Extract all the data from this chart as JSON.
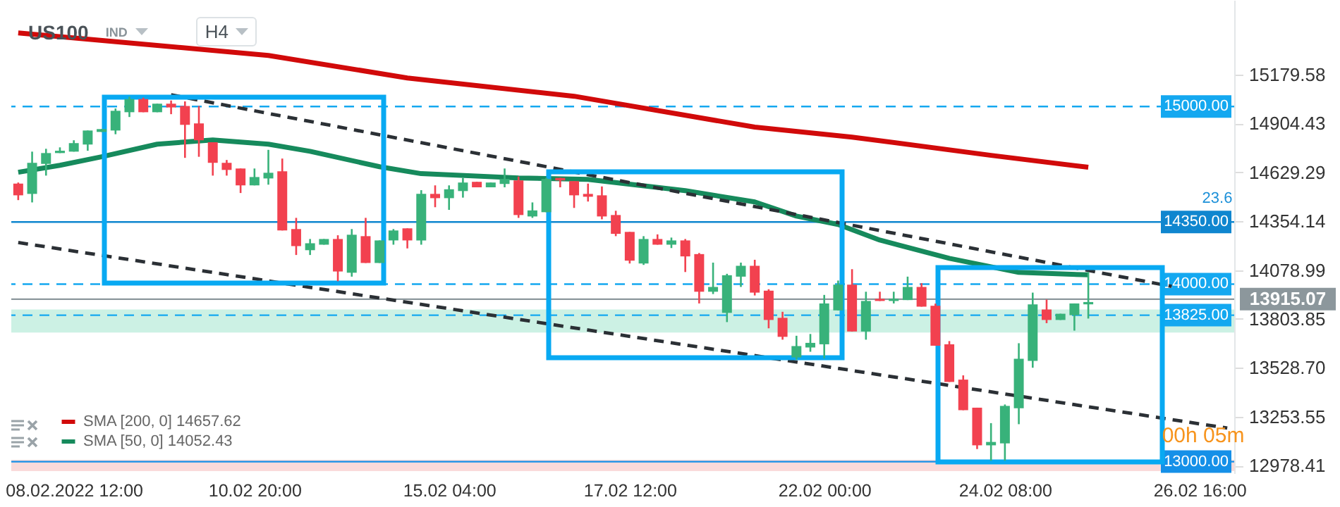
{
  "chart_data": {
    "type": "candlestick",
    "title": "US100",
    "annotations": [
      "IND",
      "H4",
      "23.6",
      "00h 05m"
    ],
    "categories": [
      null,
      null,
      null,
      null,
      "08.02.2022  12:00",
      null,
      null,
      null,
      null,
      null,
      null,
      null,
      null,
      null,
      null,
      null,
      null,
      "10.02  20:00",
      null,
      null,
      null,
      null,
      null,
      null,
      null,
      null,
      null,
      null,
      null,
      null,
      null,
      "15.02  04:00",
      null,
      null,
      null,
      null,
      null,
      null,
      null,
      null,
      null,
      null,
      null,
      null,
      "17.02  12:00",
      null,
      null,
      null,
      null,
      null,
      null,
      null,
      null,
      null,
      null,
      null,
      null,
      null,
      "22.02  00:00",
      null,
      null,
      null,
      null,
      null,
      null,
      null,
      null,
      null,
      null,
      null,
      null,
      "24.02  08:00",
      null,
      null,
      null,
      null,
      null,
      null,
      null,
      null,
      null,
      null,
      null,
      null,
      null,
      "26.02  16:00",
      null,
      null
    ],
    "ohlc": [
      [
        14566,
        14572,
        14473,
        14500
      ],
      [
        14508,
        14746,
        14460,
        14683
      ],
      [
        14677,
        14762,
        14611,
        14738
      ],
      [
        14738,
        14770,
        14738,
        14751
      ],
      [
        14746,
        14810,
        14746,
        14794
      ],
      [
        14786,
        14865,
        14751,
        14865
      ],
      [
        14857,
        14873,
        14857,
        14873
      ],
      [
        14865,
        14989,
        14844,
        14976
      ],
      [
        14968,
        15056,
        14941,
        15042
      ],
      [
        15042,
        15050,
        14968,
        14968
      ],
      [
        14968,
        15016,
        14968,
        15016
      ],
      [
        15016,
        15034,
        14957,
        14995
      ],
      [
        15003,
        15029,
        14711,
        14897
      ],
      [
        14905,
        15003,
        14717,
        14810
      ],
      [
        14799,
        14799,
        14611,
        14683
      ],
      [
        14683,
        14699,
        14611,
        14643
      ],
      [
        14651,
        14651,
        14513,
        14556
      ],
      [
        14556,
        14651,
        14556,
        14603
      ],
      [
        14595,
        14756,
        14560,
        14627
      ],
      [
        14635,
        14707,
        14302,
        14302
      ],
      [
        14310,
        14373,
        14164,
        14214
      ],
      [
        14191,
        14254,
        14164,
        14230
      ],
      [
        14222,
        14254,
        14222,
        14254
      ],
      [
        14254,
        14275,
        14016,
        14071
      ],
      [
        14064,
        14310,
        14042,
        14278
      ],
      [
        14270,
        14373,
        14119,
        14119
      ],
      [
        14119,
        14246,
        14119,
        14246
      ],
      [
        14246,
        14310,
        14222,
        14302
      ],
      [
        14314,
        14314,
        14201,
        14246
      ],
      [
        14246,
        14529,
        14222,
        14508
      ],
      [
        14508,
        14556,
        14433,
        14484
      ],
      [
        14484,
        14556,
        14418,
        14534
      ],
      [
        14524,
        14598,
        14487,
        14572
      ],
      [
        14576,
        14576,
        14545,
        14545
      ],
      [
        14545,
        14572,
        14545,
        14572
      ],
      [
        14564,
        14651,
        14545,
        14592
      ],
      [
        14584,
        14606,
        14373,
        14389
      ],
      [
        14381,
        14460,
        14373,
        14415
      ],
      [
        14405,
        14598,
        14405,
        14592
      ],
      [
        14598,
        14598,
        14545,
        14584
      ],
      [
        14580,
        14580,
        14429,
        14500
      ],
      [
        14508,
        14566,
        14465,
        14492
      ],
      [
        14500,
        14550,
        14365,
        14381
      ],
      [
        14389,
        14413,
        14270,
        14283
      ],
      [
        14294,
        14294,
        14116,
        14132
      ],
      [
        14116,
        14270,
        14108,
        14254
      ],
      [
        14254,
        14280,
        14222,
        14222
      ],
      [
        14222,
        14262,
        14203,
        14246
      ],
      [
        14246,
        14254,
        14068,
        14156
      ],
      [
        14169,
        14175,
        13891,
        13957
      ],
      [
        13957,
        14121,
        13944,
        13984
      ],
      [
        13838,
        14058,
        13786,
        14050
      ],
      [
        14042,
        14121,
        13984,
        14103
      ],
      [
        14103,
        14137,
        13936,
        13952
      ],
      [
        13963,
        13971,
        13751,
        13798
      ],
      [
        13810,
        13844,
        13687,
        13703
      ],
      [
        13587,
        13709,
        13574,
        13651
      ],
      [
        13643,
        13719,
        13619,
        13669
      ],
      [
        13661,
        13939,
        13582,
        13891
      ],
      [
        13852,
        14020,
        13852,
        13997
      ],
      [
        13997,
        14084,
        13733,
        13733
      ],
      [
        13733,
        13957,
        13687,
        13905
      ],
      [
        13917,
        13957,
        13905,
        13905
      ],
      [
        13905,
        13957,
        13891,
        13917
      ],
      [
        13910,
        14042,
        13910,
        13984
      ],
      [
        13984,
        14005,
        13873,
        13873
      ],
      [
        13878,
        13890,
        13653,
        13653
      ],
      [
        13661,
        13679,
        13449,
        13449
      ],
      [
        13462,
        13486,
        13290,
        13290
      ],
      [
        13304,
        13304,
        13071,
        13092
      ],
      [
        13092,
        13217,
        13005,
        13111
      ],
      [
        13103,
        13322,
        13005,
        13314
      ],
      [
        13301,
        13667,
        13211,
        13579
      ],
      [
        13568,
        13952,
        13529,
        13886
      ],
      [
        13857,
        13913,
        13780,
        13798
      ],
      [
        13798,
        13833,
        13798,
        13833
      ],
      [
        13825,
        13891,
        13738,
        13891
      ],
      [
        13886,
        14068,
        13806,
        13899
      ],
      null,
      null,
      null,
      null,
      null,
      null,
      null,
      null,
      null,
      null
    ],
    "colors": [
      "#f2414f",
      "#38b27a",
      "#38b27a",
      "#38b27a",
      "#38b27a",
      "#38b27a",
      "#38b27a",
      "#38b27a",
      "#38b27a",
      "#f2414f",
      "#38b27a",
      "#f2414f",
      "#f2414f",
      "#f2414f",
      "#f2414f",
      "#f2414f",
      "#f2414f",
      "#38b27a",
      "#38b27a",
      "#f2414f",
      "#f2414f",
      "#38b27a",
      "#38b27a",
      "#f2414f",
      "#38b27a",
      "#f2414f",
      "#38b27a",
      "#38b27a",
      "#f2414f",
      "#38b27a",
      "#f2414f",
      "#38b27a",
      "#38b27a",
      "#f2414f",
      "#38b27a",
      "#38b27a",
      "#f2414f",
      "#38b27a",
      "#38b27a",
      "#f2414f",
      "#f2414f",
      "#f2414f",
      "#f2414f",
      "#f2414f",
      "#f2414f",
      "#38b27a",
      "#f2414f",
      "#38b27a",
      "#f2414f",
      "#f2414f",
      "#38b27a",
      "#38b27a",
      "#38b27a",
      "#f2414f",
      "#f2414f",
      "#f2414f",
      "#38b27a",
      "#38b27a",
      "#38b27a",
      "#38b27a",
      "#f2414f",
      "#38b27a",
      "#f2414f",
      "#38b27a",
      "#38b27a",
      "#f2414f",
      "#f2414f",
      "#f2414f",
      "#f2414f",
      "#f2414f",
      "#38b27a",
      "#38b27a",
      "#38b27a",
      "#38b27a",
      "#f2414f",
      "#38b27a",
      "#38b27a",
      "#38b27a",
      null,
      null,
      null,
      null,
      null,
      null,
      null,
      null,
      null,
      null
    ],
    "series": [
      {
        "type": "line",
        "name": "SMA [200,  0]  14657.62",
        "color": "#d10a0a",
        "values": [
          15415,
          null,
          null,
          null,
          null,
          null,
          null,
          null,
          null,
          null,
          null,
          null,
          null,
          null,
          null,
          null,
          null,
          null,
          15288,
          null,
          null,
          null,
          null,
          null,
          null,
          null,
          null,
          null,
          15161,
          null,
          null,
          null,
          null,
          null,
          null,
          null,
          null,
          null,
          null,
          null,
          15058,
          null,
          null,
          null,
          null,
          null,
          null,
          null,
          null,
          null,
          null,
          null,
          null,
          14884,
          null,
          null,
          null,
          null,
          null,
          null,
          14828,
          null,
          null,
          null,
          null,
          null,
          null,
          null,
          null,
          null,
          14725,
          null,
          null,
          null,
          null,
          null,
          null,
          14658,
          null,
          null,
          null,
          null,
          null,
          null,
          null,
          null,
          null,
          null
        ]
      },
      {
        "type": "line",
        "name": "SMA [50,  0]  14052.43",
        "color": "#168a5c",
        "values": [
          14630,
          null,
          null,
          14669,
          null,
          null,
          14717,
          null,
          null,
          null,
          14788,
          null,
          null,
          null,
          14812,
          null,
          null,
          null,
          14788,
          null,
          null,
          14748,
          null,
          null,
          null,
          null,
          14661,
          null,
          null,
          14622,
          null,
          null,
          null,
          null,
          null,
          null,
          14598,
          null,
          null,
          null,
          null,
          14590,
          null,
          null,
          null,
          null,
          null,
          null,
          14526,
          null,
          null,
          null,
          null,
          14463,
          null,
          null,
          14383,
          null,
          null,
          14336,
          null,
          null,
          14248,
          null,
          null,
          null,
          null,
          14145,
          null,
          null,
          null,
          null,
          14066,
          null,
          null,
          null,
          null,
          14052,
          null,
          null,
          null,
          null,
          null,
          null,
          null,
          null,
          null,
          null
        ]
      },
      {
        "type": "line",
        "color": "#2b3035",
        "line_style": "dashed",
        "values": [
          null,
          null,
          null,
          null,
          null,
          null,
          null,
          null,
          null,
          null,
          null,
          15066,
          null,
          null,
          null,
          null,
          null,
          null,
          null,
          null,
          null,
          null,
          null,
          null,
          null,
          null,
          null,
          null,
          null,
          null,
          null,
          null,
          null,
          null,
          null,
          null,
          null,
          null,
          null,
          null,
          null,
          null,
          null,
          null,
          null,
          null,
          null,
          null,
          null,
          null,
          null,
          null,
          null,
          null,
          null,
          null,
          null,
          null,
          null,
          null,
          null,
          null,
          null,
          null,
          null,
          null,
          null,
          null,
          null,
          null,
          null,
          null,
          null,
          null,
          null,
          null,
          null,
          null,
          null,
          null,
          null,
          null,
          null,
          13987,
          null,
          null,
          null,
          null
        ]
      },
      {
        "type": "line",
        "color": "#2b3035",
        "line_style": "dashed",
        "values": [
          14234,
          null,
          null,
          null,
          null,
          null,
          null,
          null,
          null,
          null,
          null,
          null,
          null,
          null,
          null,
          null,
          null,
          null,
          null,
          null,
          null,
          null,
          null,
          null,
          null,
          null,
          null,
          null,
          null,
          null,
          null,
          null,
          null,
          null,
          null,
          null,
          null,
          null,
          null,
          null,
          null,
          null,
          null,
          null,
          null,
          null,
          null,
          null,
          null,
          null,
          null,
          null,
          null,
          null,
          null,
          null,
          null,
          null,
          null,
          null,
          null,
          null,
          null,
          null,
          null,
          null,
          null,
          null,
          null,
          null,
          null,
          null,
          null,
          null,
          null,
          null,
          null,
          null,
          null,
          null,
          null,
          null,
          null,
          null,
          null,
          null,
          null,
          13189
        ]
      }
    ],
    "ylim": [
      12935,
      15600
    ],
    "yticks": [
      15179.58,
      14904.43,
      14629.29,
      14354.14,
      14078.99,
      13803.85,
      {
        "value": 13528.7,
        "label": "13528.70"
      },
      13253.55,
      12978.41
    ],
    "ref_lines": [
      {
        "axis": "y",
        "value": 15000,
        "label": "15000.00",
        "color": "#14a8f0",
        "line_style": "dashed"
      },
      {
        "axis": "y",
        "value": 14350,
        "label": "14350.00",
        "color": "#0f86cf",
        "line_style": "solid"
      },
      {
        "axis": "y",
        "value": 14000,
        "label": "14000.00",
        "color": "#14a8f0",
        "line_style": "dashed"
      },
      {
        "axis": "y",
        "value": 13825,
        "label": "13825.00",
        "color": "#14a8f0",
        "line_style": "dashed"
      },
      {
        "axis": "y",
        "value": 13000,
        "label": "13000.00",
        "color": "#1590e8",
        "line_style": "solid"
      },
      {
        "axis": "y",
        "value": 13915.07,
        "label": "13915.07",
        "color": "#8c979c",
        "line_style": "solid"
      }
    ],
    "bands": [
      {
        "axis": "y",
        "from": 13727,
        "to": 13857,
        "color": "#c3eedf"
      },
      {
        "axis": "y",
        "from": 12947,
        "to": 13010,
        "color": "#f9d4d4"
      }
    ],
    "legend": "bottom left",
    "grid": false,
    "marker": "none"
  }
}
